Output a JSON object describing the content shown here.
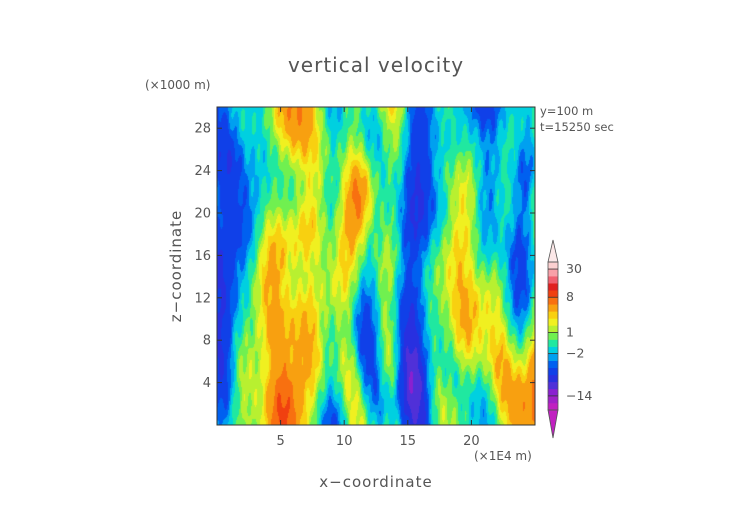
{
  "chart_data": {
    "type": "heatmap",
    "title": "vertical velocity",
    "xlabel": "x−coordinate",
    "ylabel": "z−coordinate",
    "x_unit": "(×1E4 m)",
    "y_unit": "(×1000 m)",
    "annotations": [
      "y=100 m",
      "t=15250 sec"
    ],
    "xlim": [
      0,
      25
    ],
    "ylim": [
      0,
      30
    ],
    "x_ticks": [
      5,
      10,
      15,
      20
    ],
    "y_ticks": [
      4,
      8,
      12,
      16,
      20,
      24,
      28
    ],
    "colorbar": {
      "tick_labels": [
        {
          "value": 30,
          "label": "30"
        },
        {
          "value": 8,
          "label": "8"
        },
        {
          "value": 1,
          "label": "1"
        },
        {
          "value": -2,
          "label": "−2"
        },
        {
          "value": -14,
          "label": "−14"
        }
      ],
      "levels": [
        -30,
        -20,
        -14,
        -10,
        -8,
        -6,
        -4,
        -3,
        -2,
        -1,
        0,
        1,
        2,
        3,
        4,
        6,
        8,
        10,
        14,
        20,
        30
      ],
      "colors": [
        "#c020c0",
        "#a020c8",
        "#8a20d0",
        "#5030d8",
        "#2830e0",
        "#1040e8",
        "#0060f0",
        "#00a0f0",
        "#00d0e0",
        "#20e8a0",
        "#70f050",
        "#b8f030",
        "#f0f020",
        "#f8d010",
        "#f8a010",
        "#f87010",
        "#f04010",
        "#e02020",
        "#f06070",
        "#f8a0a8",
        "#fcd0d0"
      ],
      "extend": "both"
    }
  }
}
